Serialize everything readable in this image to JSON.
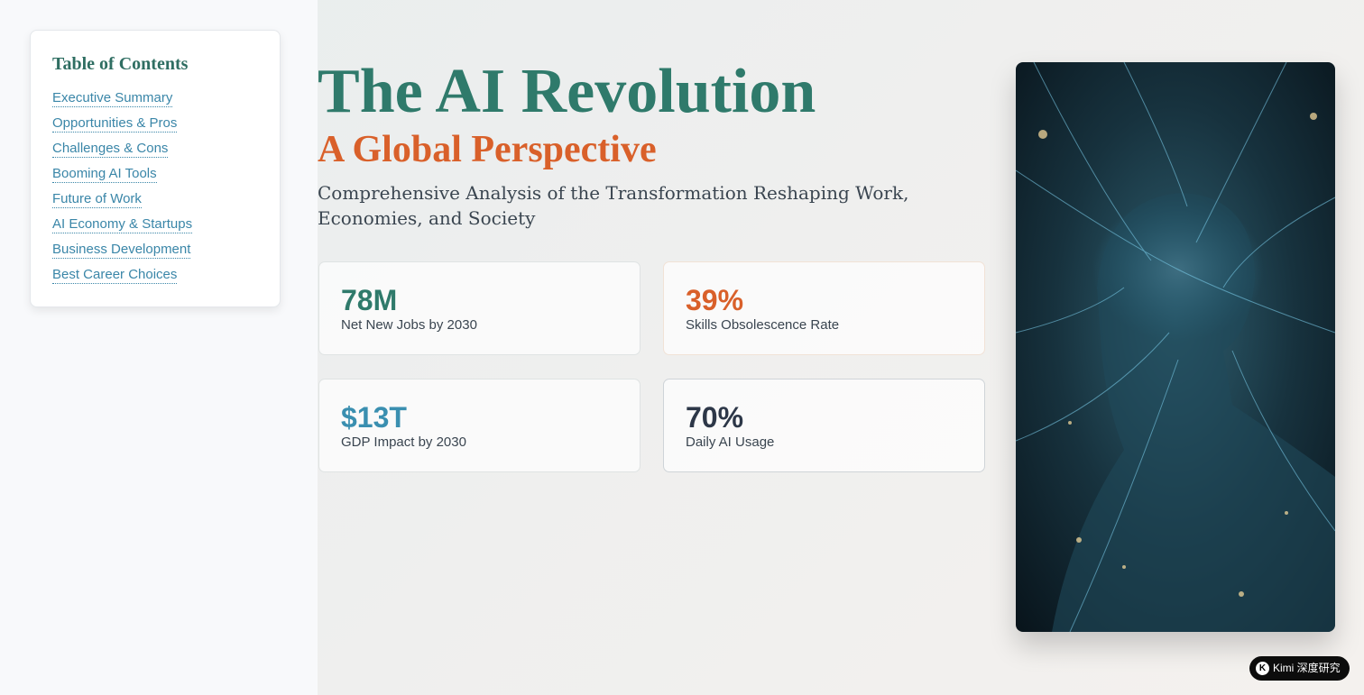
{
  "toc": {
    "title": "Table of Contents",
    "items": [
      "Executive Summary",
      "Opportunities & Pros",
      "Challenges & Cons",
      "Booming AI Tools",
      "Future of Work",
      "AI Economy & Startups",
      "Business Development",
      "Best Career Choices"
    ]
  },
  "hero": {
    "title": "The AI Revolution",
    "subtitle": "A Global Perspective",
    "description": "Comprehensive Analysis of the Transformation Reshaping Work, Economies, and Society"
  },
  "stats": [
    {
      "value": "78M",
      "label": "Net New Jobs by 2030"
    },
    {
      "value": "39%",
      "label": "Skills Obsolescence Rate"
    },
    {
      "value": "$13T",
      "label": "GDP Impact by 2030"
    },
    {
      "value": "70%",
      "label": "Daily AI Usage"
    }
  ],
  "badge": "Kimi 深度研究"
}
